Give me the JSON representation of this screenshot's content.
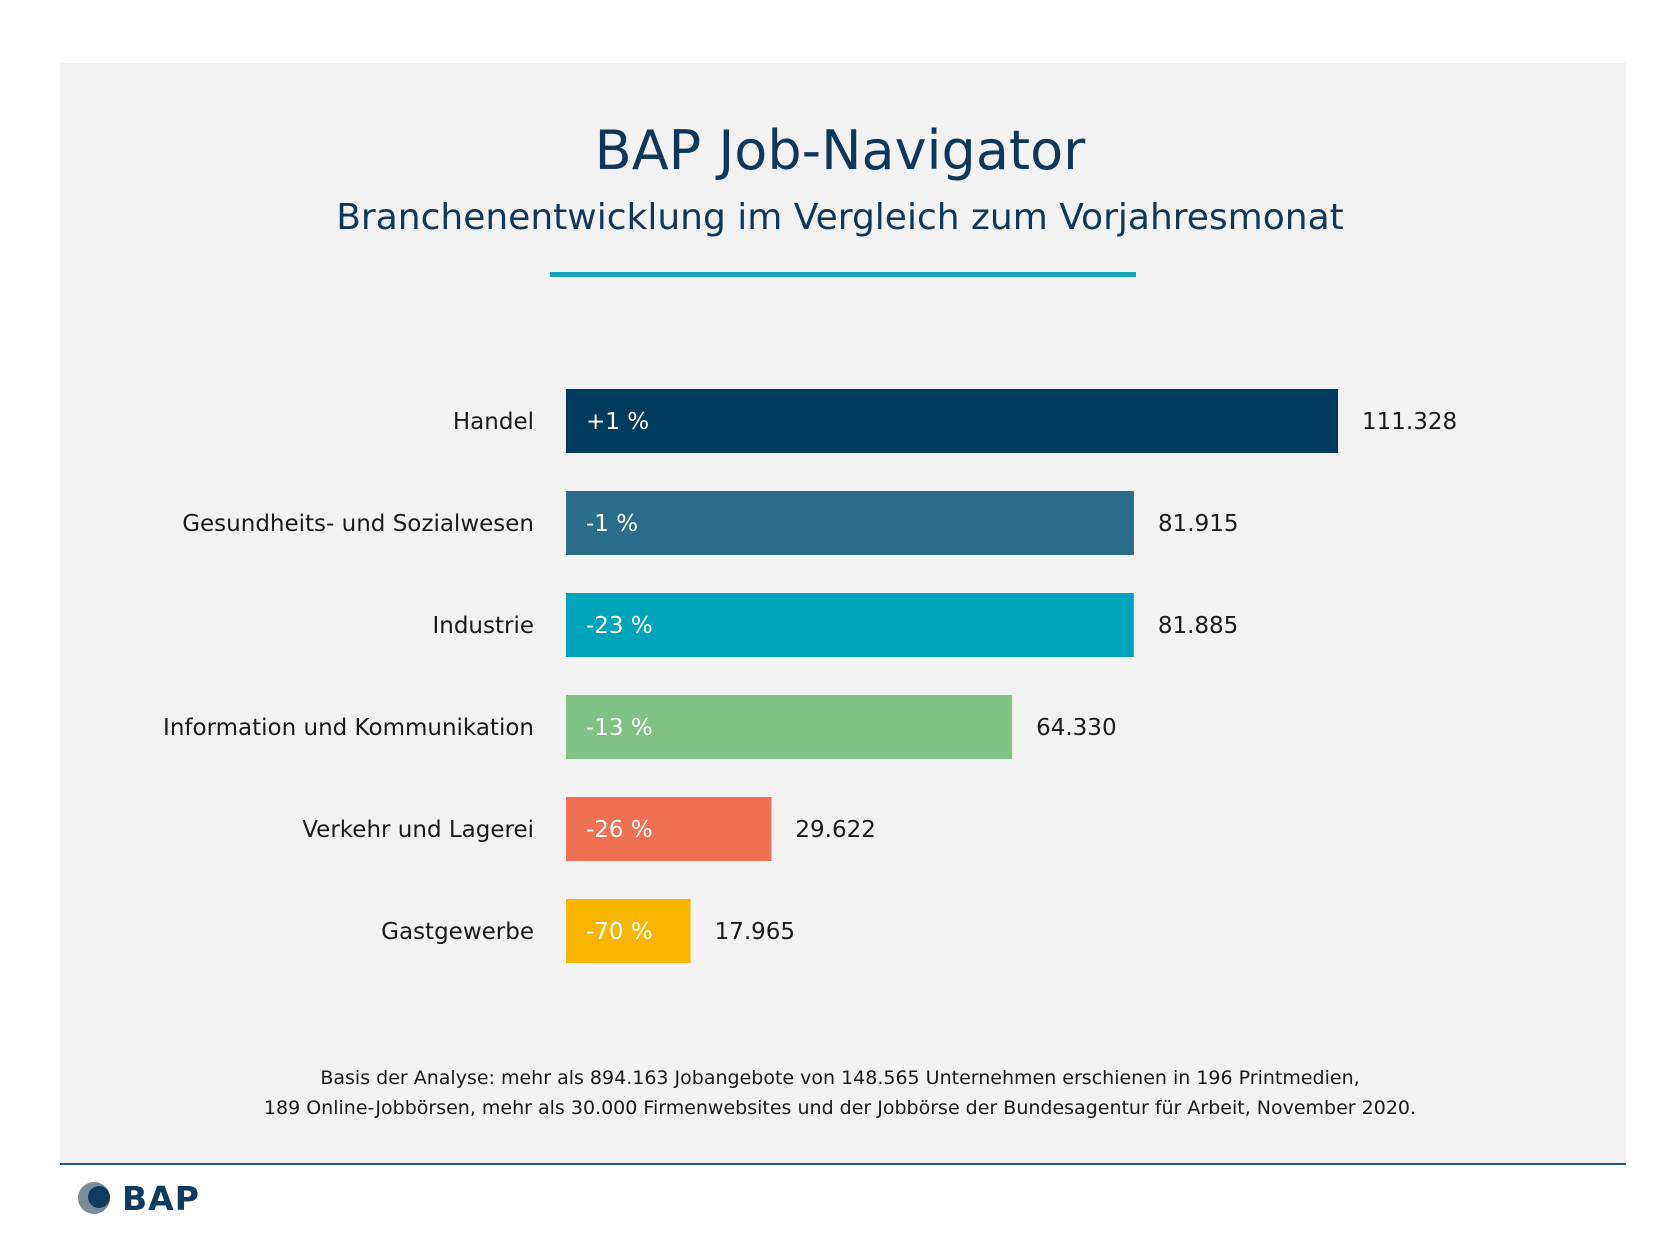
{
  "header": {
    "title": "BAP Job-Navigator",
    "subtitle": "Branchenentwicklung im Vergleich zum Vorjahresmonat"
  },
  "chart_data": {
    "type": "bar",
    "orientation": "horizontal",
    "categories": [
      "Handel",
      "Gesundheits- und Sozialwesen",
      "Industrie",
      "Information und Kommunikation",
      "Verkehr und Lagerei",
      "Gastgewerbe"
    ],
    "values": [
      111328,
      81915,
      81885,
      64330,
      29622,
      17965
    ],
    "value_labels": [
      "111.328",
      "81.915",
      "81.885",
      "64.330",
      "29.622",
      "17.965"
    ],
    "change_labels": [
      "+1 %",
      "-1 %",
      "-23 %",
      "-13 %",
      "-26 %",
      "-70 %"
    ],
    "colors": [
      "#003a5d",
      "#2a6c8a",
      "#00a3bc",
      "#7fc283",
      "#ef7053",
      "#f9b400"
    ],
    "title": "BAP Job-Navigator",
    "subtitle": "Branchenentwicklung im Vergleich zum Vorjahresmonat",
    "xlabel": "",
    "ylabel": "",
    "xlim": [
      0,
      111328
    ],
    "grid": false,
    "legend": "none"
  },
  "footnote": {
    "line1": "Basis der Analyse: mehr als 894.163 Jobangebote von 148.565 Unternehmen erschienen in 196 Printmedien,",
    "line2": "189 Online-Jobbörsen, mehr als 30.000 Firmenwebsites und der Jobbörse der Bundesagentur für Arbeit, November 2020."
  },
  "logo": {
    "text": "BAP",
    "icon": "bap-logo-icon",
    "colors": [
      "#0f3b5f",
      "#7a8c9a"
    ]
  }
}
